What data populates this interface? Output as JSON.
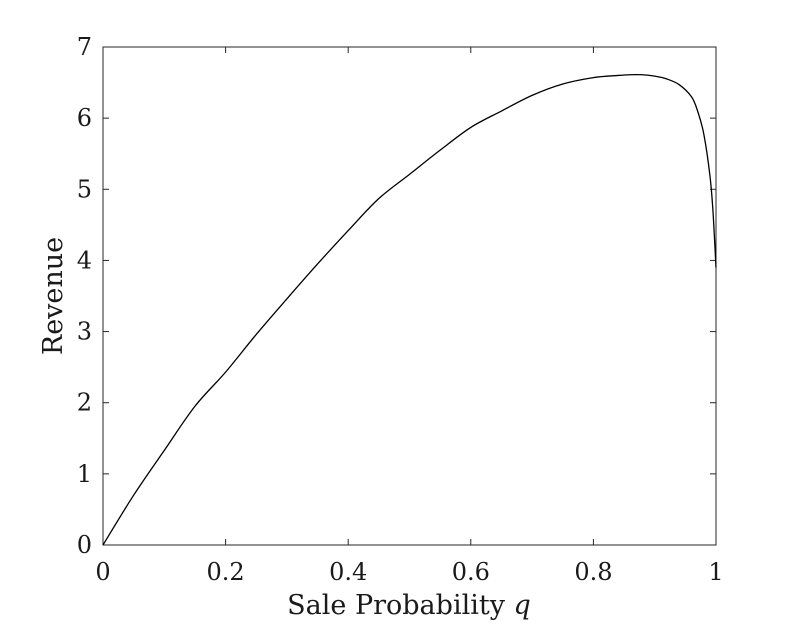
{
  "chart_data": {
    "type": "line",
    "title": "",
    "xlabel": "Sale Probability",
    "xlabel_variable": "q",
    "ylabel": "Revenue",
    "xlim": [
      0,
      1
    ],
    "ylim": [
      0,
      7
    ],
    "x_ticks": [
      0,
      0.2,
      0.4,
      0.6,
      0.8,
      1
    ],
    "x_tick_labels": [
      "0",
      "0.2",
      "0.4",
      "0.6",
      "0.8",
      "1"
    ],
    "y_ticks": [
      0,
      1,
      2,
      3,
      4,
      5,
      6,
      7
    ],
    "y_tick_labels": [
      "0",
      "1",
      "2",
      "3",
      "4",
      "5",
      "6",
      "7"
    ],
    "grid": false,
    "box": true,
    "line_color": "#000000",
    "series": [
      {
        "x": [
          0,
          0.05,
          0.1,
          0.15,
          0.2,
          0.25,
          0.3,
          0.35,
          0.4,
          0.45,
          0.5,
          0.55,
          0.6,
          0.65,
          0.7,
          0.75,
          0.8,
          0.84,
          0.86,
          0.88,
          0.9,
          0.92,
          0.94,
          0.96,
          0.97,
          0.98,
          0.99,
          0.995,
          1.0
        ],
        "y": [
          0,
          0.7,
          1.33,
          1.95,
          2.43,
          2.96,
          3.46,
          3.95,
          4.42,
          4.87,
          5.21,
          5.55,
          5.87,
          6.1,
          6.32,
          6.48,
          6.57,
          6.6,
          6.61,
          6.61,
          6.59,
          6.55,
          6.47,
          6.3,
          6.1,
          5.78,
          5.2,
          4.7,
          3.9
        ]
      }
    ]
  }
}
